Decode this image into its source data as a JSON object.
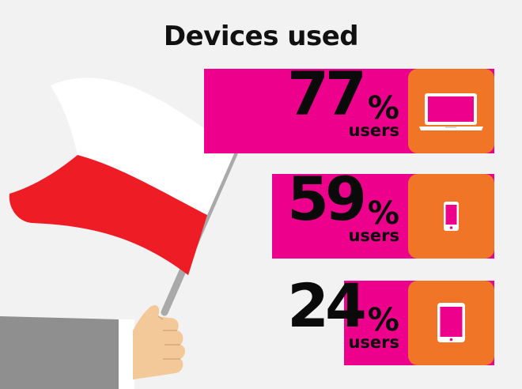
{
  "title": "Devices used",
  "colors": {
    "bar": "#ec008c",
    "icon_box": "#f07527",
    "flag_red": "#ee1c25",
    "flag_white": "#ffffff",
    "background": "#f2f2f2"
  },
  "chart_data": {
    "type": "bar",
    "title": "Devices used",
    "unit": "%",
    "value_label": "users",
    "categories": [
      "laptop-icon",
      "smartphone-icon",
      "tablet-icon"
    ],
    "values": [
      77,
      59,
      24
    ],
    "rows": [
      {
        "icon": "laptop-icon",
        "value": "77",
        "unit": "%",
        "label": "users"
      },
      {
        "icon": "smartphone-icon",
        "value": "59",
        "unit": "%",
        "label": "users"
      },
      {
        "icon": "tablet-icon",
        "value": "24",
        "unit": "%",
        "label": "users"
      }
    ]
  }
}
